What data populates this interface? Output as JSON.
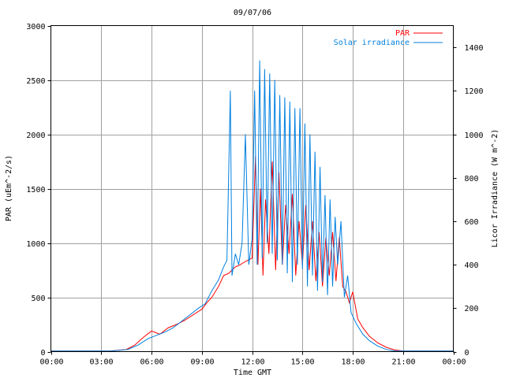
{
  "chart_data": {
    "type": "line",
    "title": "09/07/06",
    "xlabel": "Time GMT",
    "ylabel_left": "PAR (uEm^-2/s)",
    "ylabel_right": "Licor Irradiance (W m^-2)",
    "x_ticks": [
      "00:00",
      "03:00",
      "06:00",
      "09:00",
      "12:00",
      "15:00",
      "18:00",
      "21:00",
      "00:00"
    ],
    "xlim_hours": [
      0,
      24
    ],
    "ylim_left": [
      0,
      3000
    ],
    "ylim_right": [
      0,
      1500
    ],
    "y_ticks_left": [
      "0",
      "500",
      "1000",
      "1500",
      "2000",
      "2500",
      "3000"
    ],
    "y_ticks_right": [
      "0",
      "200",
      "400",
      "600",
      "800",
      "1000",
      "1200",
      "1400"
    ],
    "grid": true,
    "legend_position": "top-right",
    "series": [
      {
        "name": "PAR",
        "axis": "left",
        "color": "#ff0000",
        "points": [
          [
            0,
            5
          ],
          [
            3.5,
            5
          ],
          [
            4.5,
            20
          ],
          [
            5.0,
            60
          ],
          [
            5.5,
            130
          ],
          [
            6.0,
            190
          ],
          [
            6.5,
            160
          ],
          [
            7.0,
            220
          ],
          [
            7.5,
            250
          ],
          [
            8.0,
            290
          ],
          [
            8.5,
            340
          ],
          [
            9.0,
            390
          ],
          [
            9.3,
            450
          ],
          [
            9.6,
            500
          ],
          [
            10.0,
            600
          ],
          [
            10.3,
            700
          ],
          [
            10.6,
            720
          ],
          [
            11.0,
            780
          ],
          [
            11.3,
            800
          ],
          [
            11.6,
            830
          ],
          [
            12.0,
            860
          ],
          [
            12.2,
            1800
          ],
          [
            12.35,
            800
          ],
          [
            12.5,
            1500
          ],
          [
            12.65,
            700
          ],
          [
            12.8,
            1400
          ],
          [
            13.0,
            900
          ],
          [
            13.2,
            1750
          ],
          [
            13.4,
            750
          ],
          [
            13.6,
            1650
          ],
          [
            13.8,
            800
          ],
          [
            14.0,
            1350
          ],
          [
            14.2,
            900
          ],
          [
            14.4,
            1450
          ],
          [
            14.6,
            700
          ],
          [
            14.8,
            1200
          ],
          [
            15.0,
            800
          ],
          [
            15.2,
            1350
          ],
          [
            15.4,
            750
          ],
          [
            15.6,
            1200
          ],
          [
            15.8,
            650
          ],
          [
            16.0,
            1100
          ],
          [
            16.2,
            600
          ],
          [
            16.4,
            1050
          ],
          [
            16.6,
            700
          ],
          [
            16.8,
            1100
          ],
          [
            17.0,
            650
          ],
          [
            17.2,
            1050
          ],
          [
            17.4,
            600
          ],
          [
            17.6,
            550
          ],
          [
            17.8,
            450
          ],
          [
            18.0,
            550
          ],
          [
            18.3,
            300
          ],
          [
            18.6,
            220
          ],
          [
            19.0,
            140
          ],
          [
            19.5,
            80
          ],
          [
            20.0,
            40
          ],
          [
            20.5,
            15
          ],
          [
            21.0,
            5
          ],
          [
            24,
            5
          ]
        ]
      },
      {
        "name": "Solar irradiance",
        "axis": "right",
        "color": "#0080e0",
        "points": [
          [
            0,
            3
          ],
          [
            3.6,
            3
          ],
          [
            4.6,
            10
          ],
          [
            5.2,
            30
          ],
          [
            5.8,
            60
          ],
          [
            6.3,
            75
          ],
          [
            6.8,
            90
          ],
          [
            7.3,
            110
          ],
          [
            7.8,
            140
          ],
          [
            8.3,
            170
          ],
          [
            8.8,
            200
          ],
          [
            9.2,
            220
          ],
          [
            9.6,
            280
          ],
          [
            10.0,
            330
          ],
          [
            10.3,
            390
          ],
          [
            10.5,
            420
          ],
          [
            10.7,
            1200
          ],
          [
            10.8,
            350
          ],
          [
            11.0,
            450
          ],
          [
            11.2,
            400
          ],
          [
            11.4,
            500
          ],
          [
            11.6,
            1000
          ],
          [
            11.8,
            400
          ],
          [
            12.0,
            520
          ],
          [
            12.15,
            1200
          ],
          [
            12.3,
            400
          ],
          [
            12.45,
            1340
          ],
          [
            12.6,
            430
          ],
          [
            12.75,
            1300
          ],
          [
            12.9,
            500
          ],
          [
            13.05,
            1280
          ],
          [
            13.2,
            450
          ],
          [
            13.35,
            1250
          ],
          [
            13.5,
            420
          ],
          [
            13.65,
            1180
          ],
          [
            13.8,
            400
          ],
          [
            13.95,
            1170
          ],
          [
            14.1,
            360
          ],
          [
            14.25,
            1150
          ],
          [
            14.4,
            320
          ],
          [
            14.55,
            1120
          ],
          [
            14.7,
            400
          ],
          [
            14.85,
            1120
          ],
          [
            15.0,
            380
          ],
          [
            15.15,
            1050
          ],
          [
            15.3,
            300
          ],
          [
            15.45,
            1000
          ],
          [
            15.6,
            350
          ],
          [
            15.75,
            920
          ],
          [
            15.9,
            280
          ],
          [
            16.05,
            850
          ],
          [
            16.2,
            320
          ],
          [
            16.35,
            720
          ],
          [
            16.5,
            260
          ],
          [
            16.65,
            700
          ],
          [
            16.8,
            300
          ],
          [
            16.95,
            620
          ],
          [
            17.1,
            400
          ],
          [
            17.3,
            600
          ],
          [
            17.5,
            250
          ],
          [
            17.7,
            350
          ],
          [
            17.9,
            180
          ],
          [
            18.2,
            130
          ],
          [
            18.6,
            80
          ],
          [
            19.0,
            50
          ],
          [
            19.5,
            25
          ],
          [
            20.0,
            10
          ],
          [
            20.5,
            3
          ],
          [
            24,
            3
          ]
        ]
      }
    ]
  }
}
